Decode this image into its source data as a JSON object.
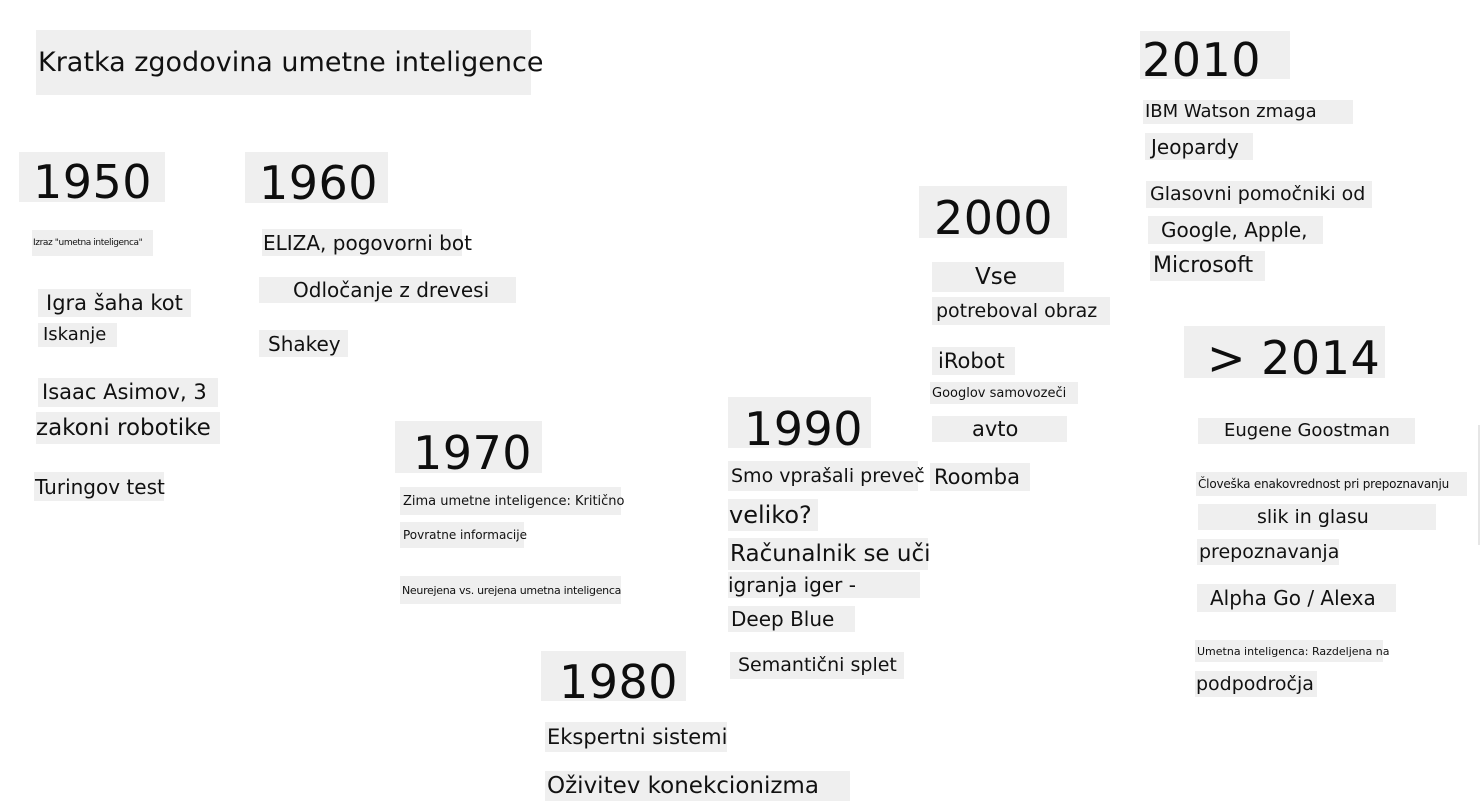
{
  "title": "Kratka zgodovina umetne inteligence",
  "eras": [
    {
      "year": "1950",
      "items": [
        "Izraz \"umetna inteligenca\"",
        "Igra šaha kot",
        "Iskanje",
        "Isaac Asimov, 3",
        "zakoni robotike",
        "Turingov test"
      ]
    },
    {
      "year": "1960",
      "items": [
        "ELIZA, pogovorni bot",
        "Odločanje z drevesi",
        "Shakey"
      ]
    },
    {
      "year": "1970",
      "items": [
        "Zima umetne inteligence: Kritično",
        "Povratne informacije",
        "Neurejena vs. urejena umetna inteligenca"
      ]
    },
    {
      "year": "1980",
      "items": [
        "Ekspertni sistemi",
        "Oživitev konekcionizma"
      ]
    },
    {
      "year": "1990",
      "items": [
        "Smo vprašali preveč",
        "veliko?",
        "Računalnik se uči",
        "igranja iger -",
        "Deep Blue",
        "Semantični splet"
      ]
    },
    {
      "year": "2000",
      "items": [
        "Vse",
        "potreboval obraz",
        "iRobot",
        "Googlov samovozeči",
        "avto",
        "Roomba"
      ]
    },
    {
      "year": "2010",
      "items": [
        "IBM Watson zmaga",
        "Jeopardy",
        "Glasovni pomočniki od",
        "Google, Apple,",
        "Microsoft"
      ]
    },
    {
      "year": "> 2014",
      "items": [
        "Eugene Goostman",
        "Človeška enakovrednost pri prepoznavanju",
        "slik in glasu",
        "prepoznavanja",
        "Alpha Go / Alexa",
        "Umetna inteligenca: Razdeljena na",
        "podpodročja"
      ]
    }
  ]
}
